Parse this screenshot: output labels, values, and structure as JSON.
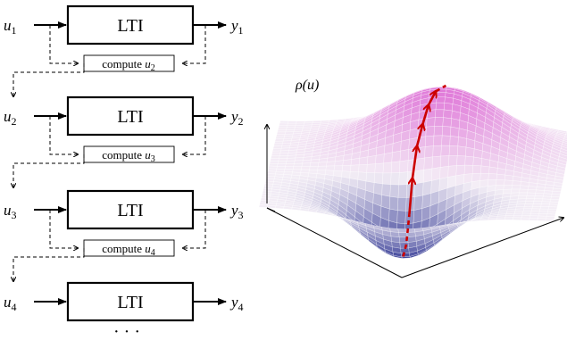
{
  "blocks": [
    {
      "input_var": "u",
      "input_sub": "1",
      "block_label": "LTI",
      "output_var": "y",
      "output_sub": "1",
      "compute_text": "compute",
      "compute_var": "u",
      "compute_sub": "2"
    },
    {
      "input_var": "u",
      "input_sub": "2",
      "block_label": "LTI",
      "output_var": "y",
      "output_sub": "2",
      "compute_text": "compute",
      "compute_var": "u",
      "compute_sub": "3"
    },
    {
      "input_var": "u",
      "input_sub": "3",
      "block_label": "LTI",
      "output_var": "y",
      "output_sub": "3",
      "compute_text": "compute",
      "compute_var": "u",
      "compute_sub": "4"
    },
    {
      "input_var": "u",
      "input_sub": "4",
      "block_label": "LTI",
      "output_var": "y",
      "output_sub": "4"
    }
  ],
  "continuation": "· · ·",
  "surface": {
    "axis_label": "ρ(u)",
    "colors": {
      "low": "#2e3592",
      "mid": "#f4eef6",
      "high": "#e07ad9",
      "grid": "#ffffff",
      "path": "#cc0000"
    }
  }
}
